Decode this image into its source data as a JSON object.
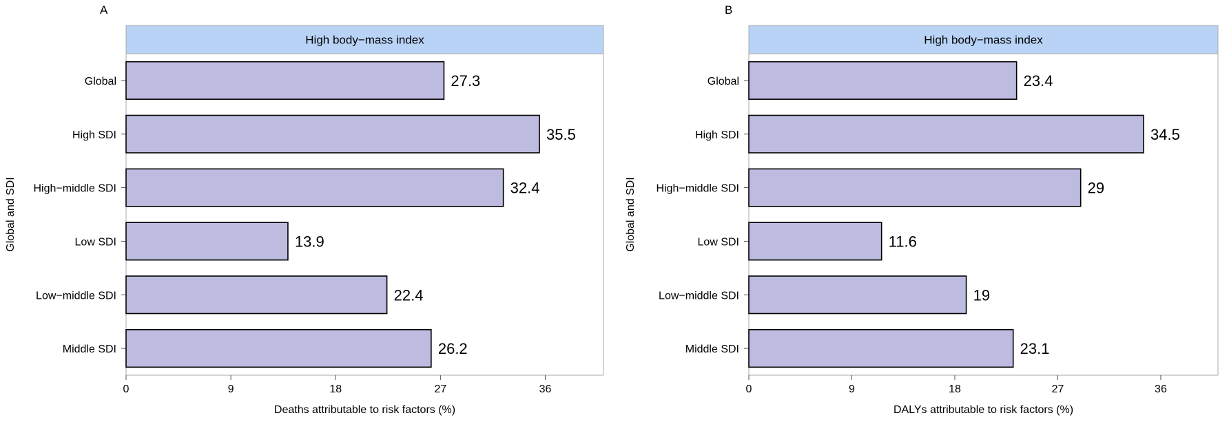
{
  "chart_data": [
    {
      "type": "bar",
      "orientation": "horizontal",
      "panel_label": "A",
      "strip_title": "High body−mass index",
      "categories": [
        "Global",
        "High SDI",
        "High−middle SDI",
        "Low SDI",
        "Low−middle SDI",
        "Middle SDI"
      ],
      "values": [
        27.3,
        35.5,
        32.4,
        13.9,
        22.4,
        26.2
      ],
      "value_labels": [
        "27.3",
        "35.5",
        "32.4",
        "13.9",
        "22.4",
        "26.2"
      ],
      "xlabel": "Deaths attributable to risk factors (%)",
      "ylabel": "Global and SDI",
      "xlim": [
        0,
        41
      ],
      "xticks": [
        0,
        9,
        18,
        27,
        36
      ],
      "grid": false
    },
    {
      "type": "bar",
      "orientation": "horizontal",
      "panel_label": "B",
      "strip_title": "High body−mass index",
      "categories": [
        "Global",
        "High SDI",
        "High−middle SDI",
        "Low SDI",
        "Low−middle SDI",
        "Middle SDI"
      ],
      "values": [
        23.4,
        34.5,
        29,
        11.6,
        19,
        23.1
      ],
      "value_labels": [
        "23.4",
        "34.5",
        "29",
        "11.6",
        "19",
        "23.1"
      ],
      "xlabel": "DALYs attributable to risk factors (%)",
      "ylabel": "Global and SDI",
      "xlim": [
        0,
        41
      ],
      "xticks": [
        0,
        9,
        18,
        27,
        36
      ],
      "grid": false
    }
  ],
  "colors": {
    "bar_fill": "#bdbbe0",
    "strip_fill": "#b9d3f7",
    "frame": "#a8a8a8"
  }
}
